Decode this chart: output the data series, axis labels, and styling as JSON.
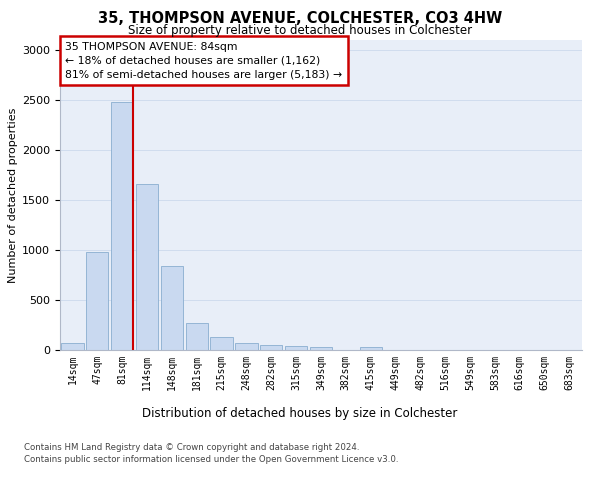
{
  "title_line1": "35, THOMPSON AVENUE, COLCHESTER, CO3 4HW",
  "title_line2": "Size of property relative to detached houses in Colchester",
  "xlabel": "Distribution of detached houses by size in Colchester",
  "ylabel": "Number of detached properties",
  "categories": [
    "14sqm",
    "47sqm",
    "81sqm",
    "114sqm",
    "148sqm",
    "181sqm",
    "215sqm",
    "248sqm",
    "282sqm",
    "315sqm",
    "349sqm",
    "382sqm",
    "415sqm",
    "449sqm",
    "482sqm",
    "516sqm",
    "549sqm",
    "583sqm",
    "616sqm",
    "650sqm",
    "683sqm"
  ],
  "values": [
    70,
    980,
    2480,
    1660,
    840,
    270,
    135,
    70,
    55,
    45,
    30,
    0,
    35,
    0,
    0,
    0,
    0,
    0,
    0,
    0,
    0
  ],
  "bar_color": "#c9d9f0",
  "bar_edge_color": "#8aaed0",
  "vline_color": "#cc0000",
  "annotation_text": "35 THOMPSON AVENUE: 84sqm\n← 18% of detached houses are smaller (1,162)\n81% of semi-detached houses are larger (5,183) →",
  "annotation_box_edge_color": "#cc0000",
  "ylim": [
    0,
    3100
  ],
  "yticks": [
    0,
    500,
    1000,
    1500,
    2000,
    2500,
    3000
  ],
  "grid_color": "#d0dcee",
  "background_color": "#e8eef8",
  "footer_line1": "Contains HM Land Registry data © Crown copyright and database right 2024.",
  "footer_line2": "Contains public sector information licensed under the Open Government Licence v3.0."
}
